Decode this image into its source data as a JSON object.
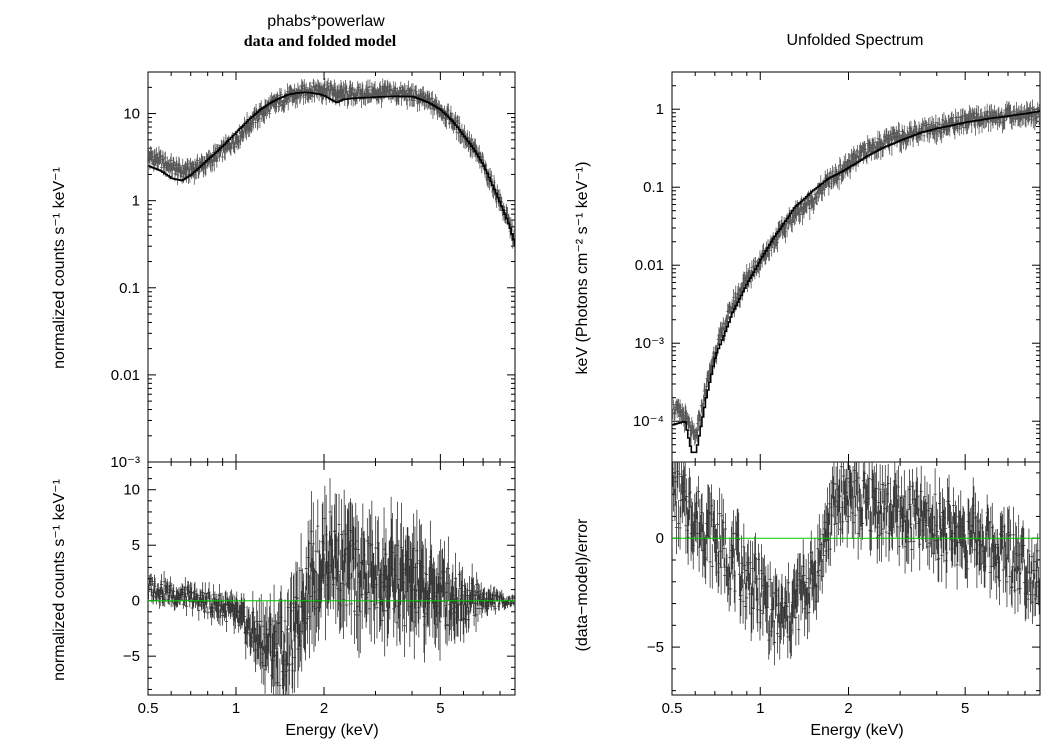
{
  "chart_data": [
    {
      "type": "line",
      "panel": "left-top",
      "title": "phabs*powerlaw",
      "subtitle": "data and folded model",
      "ylabel": "normalized counts s⁻¹ keV⁻¹",
      "xscale": "log",
      "yscale": "log",
      "xlim": [
        0.5,
        9.0
      ],
      "ylim": [
        0.001,
        30
      ],
      "x_ticks": [
        0.5,
        1,
        2,
        5
      ],
      "y_ticks": [
        {
          "value": 10,
          "label": "10"
        },
        {
          "value": 1,
          "label": "1"
        },
        {
          "value": 0.1,
          "label": "0.1"
        },
        {
          "value": 0.01,
          "label": "0.01"
        },
        {
          "value": 0.001,
          "label": "10⁻³"
        }
      ],
      "series": [
        {
          "role": "folded-model",
          "color": "#000000",
          "x": [
            0.5,
            0.55,
            0.6,
            0.65,
            0.7,
            0.8,
            0.9,
            1.0,
            1.1,
            1.2,
            1.3,
            1.4,
            1.5,
            1.6,
            1.7,
            1.8,
            1.9,
            2.0,
            2.1,
            2.2,
            2.3,
            2.5,
            3.0,
            3.5,
            4.0,
            4.5,
            5.0,
            5.5,
            6.0,
            6.5,
            7.0,
            7.5,
            8.0,
            8.5,
            9.0
          ],
          "y": [
            2.5,
            2.2,
            1.8,
            1.7,
            2.0,
            3.0,
            4.3,
            6.2,
            8.5,
            11,
            13.2,
            15,
            16.5,
            17.2,
            17.5,
            17.3,
            16.8,
            16.0,
            14.5,
            13.3,
            14.5,
            15.0,
            15.5,
            15.8,
            15.7,
            13.5,
            11.0,
            8.0,
            5.5,
            3.8,
            2.5,
            1.5,
            0.9,
            0.55,
            0.3
          ]
        },
        {
          "role": "data",
          "color": "#555555",
          "x": [
            0.5,
            0.55,
            0.6,
            0.65,
            0.7,
            0.8,
            0.9,
            1.0,
            1.1,
            1.2,
            1.3,
            1.4,
            1.5,
            1.6,
            1.7,
            1.8,
            1.9,
            2.0,
            2.1,
            2.2,
            2.3,
            2.5,
            3.0,
            3.5,
            4.0,
            4.5,
            5.0,
            5.5,
            6.0,
            6.5,
            7.0,
            7.5,
            8.0,
            8.5,
            9.0
          ],
          "y": [
            3.3,
            2.9,
            2.5,
            2.2,
            2.3,
            2.8,
            3.8,
            5.2,
            7.5,
            10,
            12,
            14,
            15.5,
            16.5,
            18,
            19,
            19.5,
            19.5,
            18.5,
            17.5,
            17,
            17,
            17.5,
            17.5,
            16.5,
            14,
            11.5,
            8.5,
            5.8,
            4.0,
            2.6,
            1.6,
            1.0,
            0.6,
            0.35
          ]
        }
      ]
    },
    {
      "type": "scatter",
      "panel": "left-bottom",
      "ylabel": "normalized counts s⁻¹ keV⁻¹",
      "xlabel": "Energy (keV)",
      "xscale": "log",
      "xlim": [
        0.5,
        9.0
      ],
      "ylim": [
        -8.5,
        12.5
      ],
      "x_ticks": [
        {
          "value": 0.5,
          "label": "0.5"
        },
        {
          "value": 1,
          "label": "1"
        },
        {
          "value": 2,
          "label": "2"
        },
        {
          "value": 5,
          "label": "5"
        }
      ],
      "y_ticks": [
        {
          "value": 10,
          "label": "10"
        },
        {
          "value": 5,
          "label": "5"
        },
        {
          "value": 0,
          "label": "0"
        },
        {
          "value": -5,
          "label": "−5"
        }
      ],
      "reference_line": {
        "y": 0,
        "color": "#00cc00"
      },
      "series": [
        {
          "role": "residuals",
          "color": "#333333",
          "x": [
            0.5,
            0.55,
            0.6,
            0.65,
            0.7,
            0.8,
            0.9,
            1.0,
            1.1,
            1.2,
            1.3,
            1.4,
            1.5,
            1.6,
            1.7,
            1.8,
            1.9,
            2.0,
            2.1,
            2.2,
            2.3,
            2.5,
            3.0,
            3.5,
            4.0,
            4.5,
            5.0,
            5.5,
            6.0,
            6.5,
            7.0,
            7.5,
            8.0,
            8.5,
            9.0
          ],
          "y": [
            1.2,
            1.0,
            0.6,
            0.4,
            0.2,
            -0.2,
            -0.5,
            -1.5,
            -2.5,
            -3.5,
            -4.0,
            -4.5,
            -4.0,
            -3.0,
            0.5,
            2.5,
            3.0,
            3.5,
            4.5,
            4.0,
            3.0,
            2.5,
            2.0,
            1.5,
            1.2,
            0.8,
            0.5,
            0.3,
            0.2,
            0.1,
            0.05,
            0.0,
            0.0,
            0.0,
            0.0
          ],
          "err": [
            0.8,
            0.8,
            0.8,
            0.8,
            0.8,
            0.9,
            1.0,
            1.2,
            1.5,
            2.0,
            2.5,
            3.0,
            3.0,
            3.0,
            3.5,
            3.5,
            3.5,
            3.5,
            3.5,
            3.5,
            3.5,
            3.5,
            3.5,
            3.5,
            3.5,
            3.0,
            3.0,
            2.5,
            2.0,
            1.5,
            1.0,
            0.8,
            0.5,
            0.4,
            0.3
          ]
        }
      ]
    },
    {
      "type": "line",
      "panel": "right-top",
      "title": "Unfolded Spectrum",
      "ylabel": "keV (Photons cm⁻² s⁻¹ keV⁻¹)",
      "xscale": "log",
      "yscale": "log",
      "xlim": [
        0.5,
        9.0
      ],
      "ylim": [
        3e-05,
        3
      ],
      "y_ticks": [
        {
          "value": 1,
          "label": "1"
        },
        {
          "value": 0.1,
          "label": "0.1"
        },
        {
          "value": 0.01,
          "label": "0.01"
        },
        {
          "value": 0.001,
          "label": "10⁻³"
        },
        {
          "value": 0.0001,
          "label": "10⁻⁴"
        }
      ],
      "series": [
        {
          "role": "unfolded-model",
          "color": "#000000",
          "x": [
            0.5,
            0.55,
            0.58,
            0.6,
            0.65,
            0.7,
            0.75,
            0.8,
            0.9,
            1.0,
            1.1,
            1.2,
            1.3,
            1.5,
            1.7,
            1.9,
            2.0,
            2.3,
            2.6,
            3.0,
            3.5,
            4.0,
            5.0,
            6.0,
            7.0,
            8.0,
            9.0
          ],
          "y": [
            9e-05,
            0.0001,
            4e-05,
            4e-05,
            0.0002,
            0.0007,
            0.0013,
            0.0025,
            0.006,
            0.012,
            0.022,
            0.035,
            0.055,
            0.09,
            0.13,
            0.16,
            0.18,
            0.25,
            0.32,
            0.4,
            0.5,
            0.57,
            0.68,
            0.76,
            0.82,
            0.88,
            0.95
          ]
        },
        {
          "role": "data",
          "color": "#555555",
          "x": [
            0.5,
            0.55,
            0.6,
            0.65,
            0.7,
            0.75,
            0.8,
            0.9,
            1.0,
            1.1,
            1.2,
            1.3,
            1.5,
            1.7,
            1.9,
            2.0,
            2.3,
            2.6,
            3.0,
            3.5,
            4.0,
            5.0,
            6.0,
            7.0,
            8.0,
            9.0
          ],
          "y": [
            0.00015,
            0.00012,
            6e-05,
            0.00025,
            0.0008,
            0.0016,
            0.003,
            0.007,
            0.012,
            0.02,
            0.03,
            0.045,
            0.07,
            0.12,
            0.17,
            0.2,
            0.3,
            0.38,
            0.46,
            0.55,
            0.6,
            0.72,
            0.8,
            0.85,
            0.88,
            0.92
          ]
        }
      ]
    },
    {
      "type": "scatter",
      "panel": "right-bottom",
      "ylabel": "(data−model)/error",
      "xlabel": "Energy (keV)",
      "xscale": "log",
      "xlim": [
        0.5,
        9.0
      ],
      "ylim": [
        -7.2,
        3.5
      ],
      "x_ticks": [
        {
          "value": 0.5,
          "label": "0.5"
        },
        {
          "value": 1,
          "label": "1"
        },
        {
          "value": 2,
          "label": "2"
        },
        {
          "value": 5,
          "label": "5"
        }
      ],
      "y_ticks": [
        {
          "value": 0,
          "label": "0"
        },
        {
          "value": -5,
          "label": "−5"
        }
      ],
      "reference_line": {
        "y": 0,
        "color": "#00cc00"
      },
      "series": [
        {
          "role": "residuals",
          "color": "#333333",
          "x": [
            0.5,
            0.55,
            0.6,
            0.65,
            0.7,
            0.75,
            0.8,
            0.9,
            1.0,
            1.1,
            1.2,
            1.3,
            1.4,
            1.5,
            1.6,
            1.7,
            1.8,
            1.9,
            2.0,
            2.2,
            2.5,
            3.0,
            3.5,
            4.0,
            4.5,
            5.0,
            5.5,
            6.0,
            6.5,
            7.0,
            7.5,
            8.0,
            8.5,
            9.0
          ],
          "y": [
            2.0,
            1.5,
            1.0,
            0.5,
            0.0,
            -0.5,
            -1.0,
            -1.8,
            -2.5,
            -3.5,
            -3.8,
            -3.2,
            -2.5,
            -2.0,
            -1.0,
            0.5,
            1.5,
            2.0,
            2.0,
            1.5,
            1.5,
            1.0,
            0.8,
            0.5,
            0.3,
            0.1,
            0.0,
            -0.3,
            -0.5,
            -0.8,
            -1.0,
            -1.2,
            -1.5,
            -1.5
          ],
          "err": [
            1.0,
            1.0,
            1.0,
            1.0,
            1.0,
            1.0,
            1.0,
            1.0,
            1.0,
            1.0,
            1.0,
            1.0,
            1.0,
            1.0,
            1.0,
            1.0,
            1.0,
            1.0,
            1.0,
            1.0,
            1.0,
            1.0,
            1.0,
            1.0,
            1.0,
            1.0,
            1.0,
            1.0,
            1.0,
            1.0,
            1.0,
            1.0,
            1.0,
            1.0
          ]
        }
      ]
    }
  ]
}
